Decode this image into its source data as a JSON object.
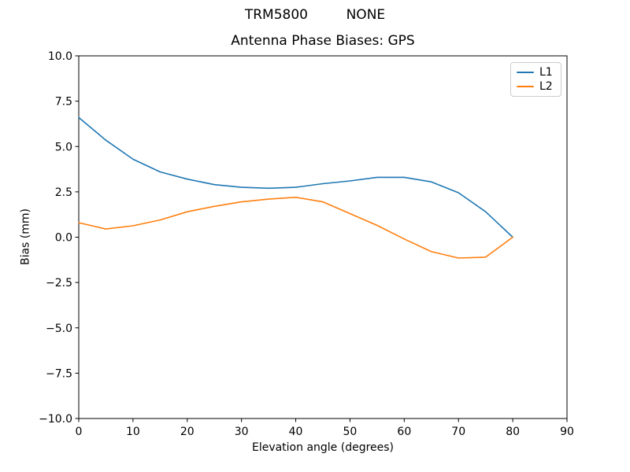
{
  "chart_data": {
    "type": "line",
    "suptitle": "TRM5800         NONE",
    "title": "Antenna Phase Biases: GPS",
    "xlabel": "Elevation angle (degrees)",
    "ylabel": "Bias (mm)",
    "xlim": [
      0,
      90
    ],
    "ylim": [
      -10,
      10
    ],
    "x_ticks": [
      0,
      10,
      20,
      30,
      40,
      50,
      60,
      70,
      80,
      90
    ],
    "y_ticks": [
      -10,
      -7.5,
      -5,
      -2.5,
      0,
      2.5,
      5,
      7.5,
      10
    ],
    "grid": false,
    "legend_position": "upper right",
    "x": [
      0,
      5,
      10,
      15,
      20,
      25,
      30,
      35,
      40,
      45,
      50,
      55,
      60,
      65,
      70,
      75,
      80
    ],
    "series": [
      {
        "name": "L1",
        "color": "#1f77b4",
        "values": [
          6.6,
          5.35,
          4.3,
          3.6,
          3.2,
          2.9,
          2.75,
          2.7,
          2.75,
          2.95,
          3.1,
          3.3,
          3.3,
          3.05,
          2.45,
          1.4,
          0.0
        ]
      },
      {
        "name": "L2",
        "color": "#ff7f0e",
        "values": [
          0.8,
          0.45,
          0.63,
          0.95,
          1.4,
          1.7,
          1.95,
          2.1,
          2.2,
          1.95,
          1.3,
          0.65,
          -0.1,
          -0.8,
          -1.15,
          -1.1,
          0.0
        ]
      }
    ]
  }
}
